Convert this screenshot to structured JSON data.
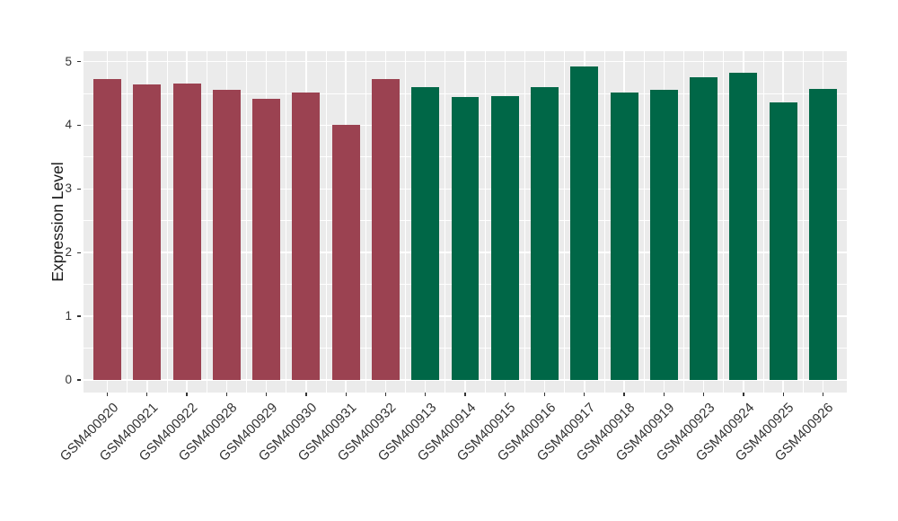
{
  "chart_data": {
    "type": "bar",
    "title": "",
    "xlabel": "",
    "ylabel": "Expression Level",
    "categories": [
      "GSM400920",
      "GSM400921",
      "GSM400922",
      "GSM400928",
      "GSM400929",
      "GSM400930",
      "GSM400931",
      "GSM400932",
      "GSM400913",
      "GSM400914",
      "GSM400915",
      "GSM400916",
      "GSM400917",
      "GSM400918",
      "GSM400919",
      "GSM400923",
      "GSM400924",
      "GSM400925",
      "GSM400926"
    ],
    "values": [
      4.73,
      4.64,
      4.65,
      4.55,
      4.42,
      4.52,
      4.0,
      4.72,
      4.6,
      4.44,
      4.45,
      4.6,
      4.92,
      4.52,
      4.56,
      4.75,
      4.82,
      4.36,
      4.57
    ],
    "bar_colors": [
      "#9B4251",
      "#9B4251",
      "#9B4251",
      "#9B4251",
      "#9B4251",
      "#9B4251",
      "#9B4251",
      "#9B4251",
      "#006747",
      "#006747",
      "#006747",
      "#006747",
      "#006747",
      "#006747",
      "#006747",
      "#006747",
      "#006747",
      "#006747",
      "#006747"
    ],
    "group_colors": {
      "left_group": "#9B4251",
      "right_group": "#006747"
    },
    "yticks": [
      0,
      1,
      2,
      3,
      4,
      5
    ],
    "yticks_minor": [
      0.5,
      1.5,
      2.5,
      3.5,
      4.5
    ],
    "ylim": [
      -0.2,
      5.16
    ],
    "grid": true,
    "legend": "none",
    "panel_background": "#EBEBEB",
    "grid_color": "#FFFFFF",
    "tick_color": "#333333",
    "axis_text_color": "#333333",
    "axis_title_color": "#1a1a1a"
  }
}
